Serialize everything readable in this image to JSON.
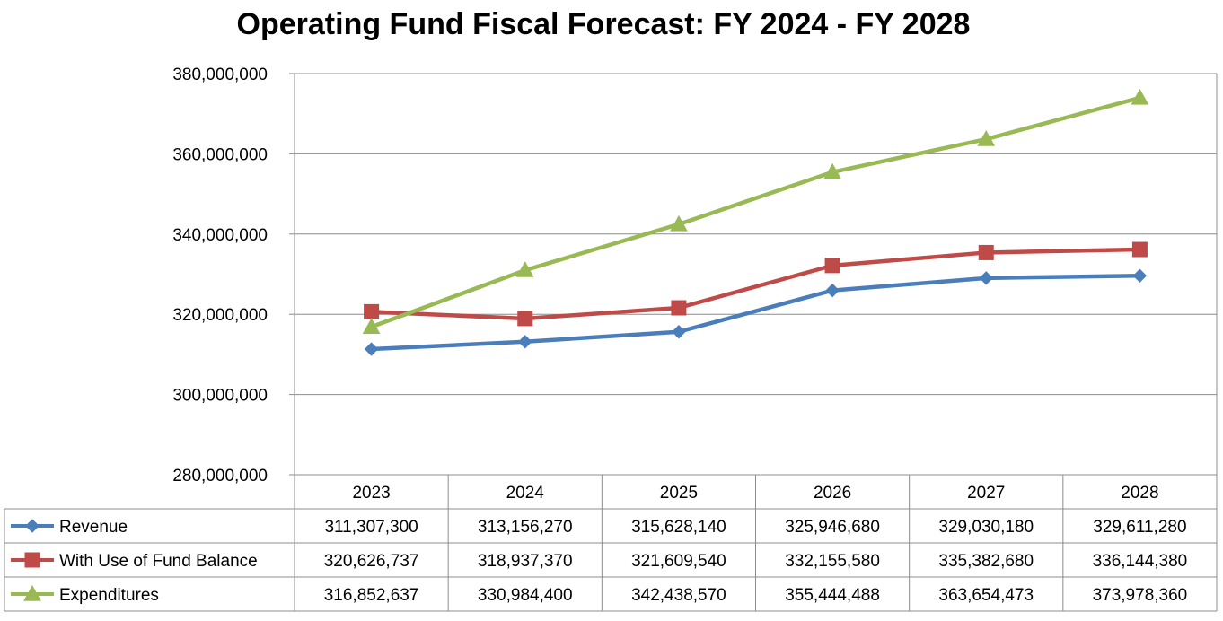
{
  "chart_data": {
    "type": "line",
    "title": "Operating Fund Fiscal Forecast:  FY 2024 - FY 2028",
    "xlabel": "",
    "ylabel": "",
    "categories": [
      "2023",
      "2024",
      "2025",
      "2026",
      "2027",
      "2028"
    ],
    "ylim": [
      280000000,
      380000000
    ],
    "ytick_values": [
      280000000,
      300000000,
      320000000,
      340000000,
      360000000,
      380000000
    ],
    "ytick_labels": [
      "280,000,000",
      "300,000,000",
      "320,000,000",
      "340,000,000",
      "360,000,000",
      "380,000,000"
    ],
    "grid": true,
    "legend": "data-table-below",
    "series": [
      {
        "name": "Revenue",
        "marker": "diamond",
        "color": "#4a7ebb",
        "values": [
          311307300,
          313156270,
          315628140,
          325946680,
          329030180,
          329611280
        ],
        "labels": [
          "311,307,300",
          "313,156,270",
          "315,628,140",
          "325,946,680",
          "329,030,180",
          "329,611,280"
        ]
      },
      {
        "name": "With Use of Fund Balance",
        "marker": "square",
        "color": "#be4b48",
        "values": [
          320626737,
          318937370,
          321609540,
          332155580,
          335382680,
          336144380
        ],
        "labels": [
          "320,626,737",
          "318,937,370",
          "321,609,540",
          "332,155,580",
          "335,382,680",
          "336,144,380"
        ]
      },
      {
        "name": "Expenditures",
        "marker": "triangle",
        "color": "#98b954",
        "values": [
          316852637,
          330984400,
          342438570,
          355444488,
          363654473,
          373978360
        ],
        "labels": [
          "316,852,637",
          "330,984,400",
          "342,438,570",
          "355,444,488",
          "363,654,473",
          "373,978,360"
        ]
      }
    ]
  }
}
